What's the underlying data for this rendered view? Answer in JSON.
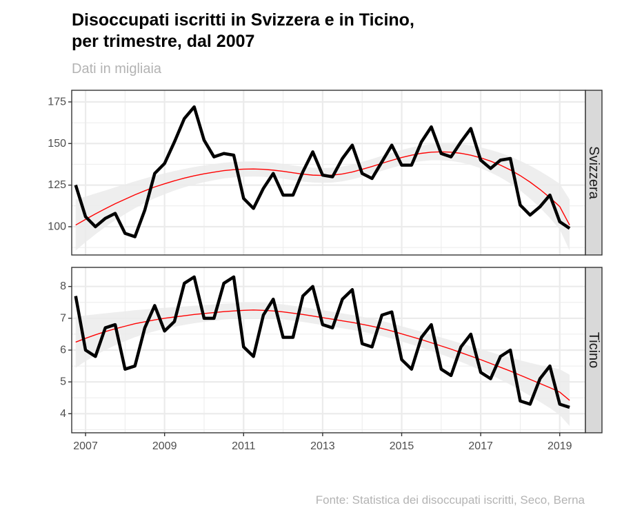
{
  "chart": {
    "title_line1": "Disoccupati iscritti in Svizzera e in Ticino,",
    "title_line2": "per trimestre, dal 2007",
    "subtitle": "Dati in migliaia",
    "caption": "Fonte: Statistica dei disoccupati iscritti, Seco, Berna"
  },
  "colors": {
    "series_line": "#000000",
    "trend_line": "#ff0000",
    "confidence_band": "#ebebeb",
    "strip_background": "#d9d9d9",
    "panel_border": "#333333",
    "grid": "#ebebeb"
  },
  "chart_data": [
    {
      "type": "line",
      "panel": "Svizzera",
      "x": [
        2006.75,
        2007.0,
        2007.25,
        2007.5,
        2007.75,
        2008.0,
        2008.25,
        2008.5,
        2008.75,
        2009.0,
        2009.25,
        2009.5,
        2009.75,
        2010.0,
        2010.25,
        2010.5,
        2010.75,
        2011.0,
        2011.25,
        2011.5,
        2011.75,
        2012.0,
        2012.25,
        2012.5,
        2012.75,
        2013.0,
        2013.25,
        2013.5,
        2013.75,
        2014.0,
        2014.25,
        2014.5,
        2014.75,
        2015.0,
        2015.25,
        2015.5,
        2015.75,
        2016.0,
        2016.25,
        2016.5,
        2016.75,
        2017.0,
        2017.25,
        2017.5,
        2017.75,
        2018.0,
        2018.25,
        2018.5,
        2018.75,
        2019.0,
        2019.25
      ],
      "values": [
        125,
        106,
        100,
        105,
        108,
        96,
        94,
        110,
        132,
        138,
        151,
        165,
        172,
        152,
        142,
        144,
        143,
        117,
        111,
        123,
        132,
        119,
        119,
        133,
        145,
        131,
        130,
        141,
        149,
        132,
        129,
        139,
        149,
        137,
        137,
        151,
        160,
        144,
        142,
        151,
        159,
        140,
        135,
        140,
        141,
        113,
        107,
        112,
        119,
        103,
        99
      ],
      "trend": [
        101,
        104.4,
        107.7,
        110.8,
        113.8,
        116.5,
        119.2,
        121.6,
        123.9,
        125.8,
        127.6,
        129.2,
        130.6,
        131.8,
        132.8,
        133.7,
        134.3,
        134.6,
        134.7,
        134.5,
        134,
        133.3,
        132.4,
        131.6,
        131,
        130.8,
        131,
        131.7,
        132.9,
        134.5,
        136.2,
        138.1,
        139.9,
        141.6,
        143,
        144.1,
        144.8,
        145,
        144.8,
        144.1,
        143,
        141.4,
        139.4,
        137,
        134.1,
        130.7,
        126.8,
        122.4,
        117.5,
        112.1,
        101
      ],
      "yrange": [
        83,
        182
      ],
      "yticks": [
        100,
        125,
        150,
        175
      ]
    },
    {
      "type": "line",
      "panel": "Ticino",
      "x": [
        2006.75,
        2007.0,
        2007.25,
        2007.5,
        2007.75,
        2008.0,
        2008.25,
        2008.5,
        2008.75,
        2009.0,
        2009.25,
        2009.5,
        2009.75,
        2010.0,
        2010.25,
        2010.5,
        2010.75,
        2011.0,
        2011.25,
        2011.5,
        2011.75,
        2012.0,
        2012.25,
        2012.5,
        2012.75,
        2013.0,
        2013.25,
        2013.5,
        2013.75,
        2014.0,
        2014.25,
        2014.5,
        2014.75,
        2015.0,
        2015.25,
        2015.5,
        2015.75,
        2016.0,
        2016.25,
        2016.5,
        2016.75,
        2017.0,
        2017.25,
        2017.5,
        2017.75,
        2018.0,
        2018.25,
        2018.5,
        2018.75,
        2019.0,
        2019.25
      ],
      "values": [
        7.7,
        6.0,
        5.8,
        6.7,
        6.8,
        5.4,
        5.5,
        6.7,
        7.4,
        6.6,
        6.9,
        8.1,
        8.3,
        7.0,
        7.0,
        8.1,
        8.3,
        6.1,
        5.8,
        7.1,
        7.6,
        6.4,
        6.4,
        7.7,
        8.0,
        6.8,
        6.7,
        7.6,
        7.9,
        6.2,
        6.1,
        7.1,
        7.2,
        5.7,
        5.4,
        6.4,
        6.8,
        5.4,
        5.2,
        6.1,
        6.5,
        5.3,
        5.1,
        5.8,
        6.0,
        4.4,
        4.3,
        5.1,
        5.5,
        4.3,
        4.2
      ],
      "trend": [
        6.25,
        6.37,
        6.48,
        6.58,
        6.67,
        6.75,
        6.83,
        6.89,
        6.95,
        7.0,
        7.04,
        7.08,
        7.12,
        7.15,
        7.18,
        7.21,
        7.23,
        7.25,
        7.26,
        7.25,
        7.23,
        7.2,
        7.16,
        7.12,
        7.07,
        7.02,
        6.97,
        6.92,
        6.87,
        6.81,
        6.75,
        6.68,
        6.6,
        6.51,
        6.42,
        6.33,
        6.23,
        6.13,
        6.03,
        5.92,
        5.81,
        5.7,
        5.58,
        5.46,
        5.34,
        5.21,
        5.08,
        4.95,
        4.82,
        4.68,
        4.42
      ],
      "yrange": [
        3.4,
        8.6
      ],
      "yticks": [
        4,
        5,
        6,
        7,
        8
      ]
    }
  ],
  "axis": {
    "x_ticks": [
      "2007",
      "2009",
      "2011",
      "2013",
      "2015",
      "2017",
      "2019"
    ],
    "x_tick_values": [
      2007,
      2009,
      2011,
      2013,
      2015,
      2017,
      2019
    ],
    "x_range": [
      2006.65,
      2019.65
    ],
    "y_tick_labels_top": [
      "100",
      "125",
      "150",
      "175"
    ],
    "y_tick_labels_bottom": [
      "4",
      "5",
      "6",
      "7",
      "8"
    ]
  },
  "panels": {
    "top_label": "Svizzera",
    "bottom_label": "Ticino"
  }
}
